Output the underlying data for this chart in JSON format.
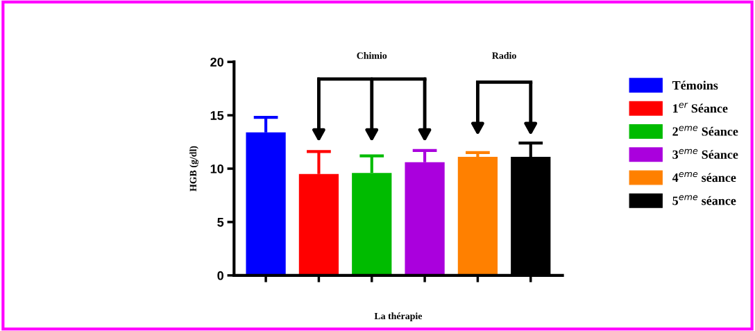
{
  "chart_data": {
    "type": "bar",
    "xlabel": "La thérapie",
    "ylabel": "HGB (g/dl)",
    "categories": [
      null,
      null,
      null,
      null,
      null,
      null
    ],
    "series": [
      {
        "name": "Témoins",
        "color": "#0000ff",
        "values": [
          13.4,
          null,
          null,
          null,
          null,
          null
        ],
        "errors": [
          [
            13.4,
            14.8
          ],
          null,
          null,
          null,
          null,
          null
        ]
      },
      {
        "name": "1$^{er}$ Séance",
        "color": "#ff0000",
        "values": [
          null,
          9.5,
          null,
          null,
          null,
          null
        ],
        "errors": [
          null,
          [
            9.5,
            11.6
          ],
          null,
          null,
          null,
          null
        ]
      },
      {
        "name": "2$^{eme}$ Séance",
        "color": "#00bb00",
        "values": [
          null,
          null,
          9.6,
          null,
          null,
          null
        ],
        "errors": [
          null,
          null,
          [
            9.6,
            11.2
          ],
          null,
          null,
          null
        ]
      },
      {
        "name": "3$^{eme}$ Séance",
        "color": "#aa00dd",
        "values": [
          null,
          null,
          null,
          10.6,
          null,
          null
        ],
        "errors": [
          null,
          null,
          null,
          [
            10.6,
            11.7
          ],
          null,
          null
        ]
      },
      {
        "name": "4$^{eme}$ séance",
        "color": "#ff8000",
        "values": [
          null,
          null,
          null,
          null,
          11.1,
          null
        ],
        "errors": [
          null,
          null,
          null,
          null,
          [
            11.1,
            11.5
          ],
          null
        ]
      },
      {
        "name": "5$^{eme}$ séance",
        "color": "#000000",
        "values": [
          null,
          null,
          null,
          null,
          null,
          11.1
        ],
        "errors": [
          null,
          null,
          null,
          null,
          null,
          [
            11.1,
            12.4
          ]
        ]
      }
    ],
    "ylim": [
      0,
      20
    ],
    "yticks": [
      0,
      5,
      10,
      15,
      20
    ],
    "grid": false,
    "legend": "right",
    "annotations": [
      "Chimio",
      "Radio"
    ]
  }
}
